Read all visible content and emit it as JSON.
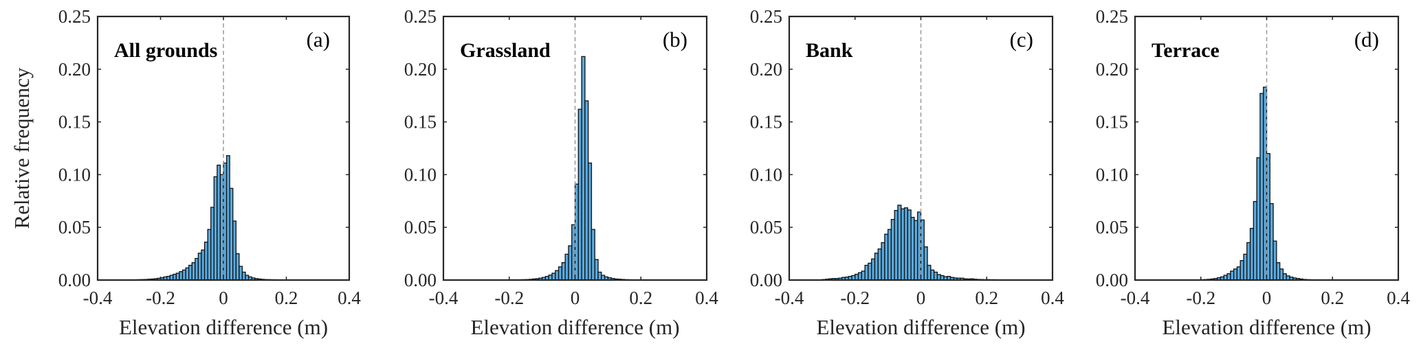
{
  "chart_data": [
    {
      "type": "bar",
      "panel_letter": "(a)",
      "title": "All grounds",
      "xlabel": "Elevation difference (m)",
      "ylabel": "Relative frequency",
      "xlim": [
        -0.4,
        0.4
      ],
      "ylim": [
        0,
        0.25
      ],
      "xticks": [
        "-0.4",
        "-0.2",
        "0",
        "0.2",
        "0.4"
      ],
      "yticks": [
        "0.00",
        "0.05",
        "0.10",
        "0.15",
        "0.20",
        "0.25"
      ],
      "bin_width": 0.01,
      "bin_start": -0.3,
      "values": [
        0.0002,
        0.0002,
        0.0003,
        0.0004,
        0.0005,
        0.0006,
        0.0008,
        0.001,
        0.0013,
        0.0017,
        0.0022,
        0.003,
        0.0035,
        0.0045,
        0.0055,
        0.0065,
        0.008,
        0.0095,
        0.0115,
        0.014,
        0.0165,
        0.0205,
        0.0255,
        0.0285,
        0.036,
        0.048,
        0.069,
        0.098,
        0.109,
        0.1,
        0.111,
        0.118,
        0.087,
        0.056,
        0.025,
        0.013,
        0.0075,
        0.0045,
        0.003,
        0.002,
        0.0014,
        0.001,
        0.0007,
        0.0005,
        0.0004,
        0.0003,
        0.0002,
        0.0002,
        0.0001,
        0.0001,
        0.0001,
        0.0001,
        0.0001,
        0.0001,
        0.0001,
        0.0001,
        0.0001,
        0.0001,
        0.0001,
        0.0001
      ],
      "reference_line_x": 0
    },
    {
      "type": "bar",
      "panel_letter": "(b)",
      "title": "Grassland",
      "xlabel": "Elevation difference (m)",
      "ylabel": "",
      "xlim": [
        -0.4,
        0.4
      ],
      "ylim": [
        0,
        0.25
      ],
      "xticks": [
        "-0.4",
        "-0.2",
        "0",
        "0.2",
        "0.4"
      ],
      "yticks": [
        "0.00",
        "0.05",
        "0.10",
        "0.15",
        "0.20",
        "0.25"
      ],
      "bin_width": 0.01,
      "bin_start": -0.2,
      "values": [
        0.0001,
        0.0002,
        0.0002,
        0.0003,
        0.0004,
        0.0005,
        0.0007,
        0.001,
        0.0013,
        0.0018,
        0.0025,
        0.0035,
        0.0047,
        0.0065,
        0.009,
        0.0125,
        0.0165,
        0.0245,
        0.0325,
        0.0525,
        0.091,
        0.162,
        0.212,
        0.17,
        0.111,
        0.048,
        0.0195,
        0.0075,
        0.0045,
        0.003,
        0.0022,
        0.0015,
        0.001,
        0.0008,
        0.0006,
        0.0004,
        0.0003,
        0.0002,
        0.0002,
        0.0001
      ],
      "reference_line_x": 0
    },
    {
      "type": "bar",
      "panel_letter": "(c)",
      "title": "Bank",
      "xlabel": "Elevation difference (m)",
      "ylabel": "",
      "xlim": [
        -0.4,
        0.4
      ],
      "ylim": [
        0,
        0.25
      ],
      "xticks": [
        "-0.4",
        "-0.2",
        "0",
        "0.2",
        "0.4"
      ],
      "yticks": [
        "0.00",
        "0.05",
        "0.10",
        "0.15",
        "0.20",
        "0.25"
      ],
      "bin_width": 0.01,
      "bin_start": -0.3,
      "values": [
        0.0005,
        0.0008,
        0.0012,
        0.0015,
        0.0015,
        0.0018,
        0.0025,
        0.0028,
        0.0035,
        0.0043,
        0.0055,
        0.007,
        0.0085,
        0.014,
        0.016,
        0.02,
        0.0255,
        0.0295,
        0.0355,
        0.0435,
        0.048,
        0.0575,
        0.066,
        0.071,
        0.0675,
        0.0685,
        0.0665,
        0.0595,
        0.0565,
        0.0645,
        0.057,
        0.0315,
        0.014,
        0.0095,
        0.0075,
        0.0052,
        0.0042,
        0.0032,
        0.0035,
        0.0025,
        0.002,
        0.0018,
        0.0018,
        0.0012,
        0.001,
        0.0012,
        0.0008,
        0.0006,
        0.0005,
        0.0004,
        0.0004,
        0.0003,
        0.0003,
        0.0002,
        0.0002,
        0.0002,
        0.0001,
        0.0001,
        0.0001,
        0.0001
      ],
      "reference_line_x": 0
    },
    {
      "type": "bar",
      "panel_letter": "(d)",
      "title": "Terrace",
      "xlabel": "Elevation difference (m)",
      "ylabel": "",
      "xlim": [
        -0.4,
        0.4
      ],
      "ylim": [
        0,
        0.25
      ],
      "xticks": [
        "-0.4",
        "-0.2",
        "0",
        "0.2",
        "0.4"
      ],
      "yticks": [
        "0.00",
        "0.05",
        "0.10",
        "0.15",
        "0.20",
        "0.25"
      ],
      "bin_width": 0.01,
      "bin_start": -0.2,
      "values": [
        0.0003,
        0.0005,
        0.0007,
        0.001,
        0.0015,
        0.0022,
        0.003,
        0.0045,
        0.006,
        0.0085,
        0.0105,
        0.0125,
        0.0185,
        0.0245,
        0.0355,
        0.049,
        0.0745,
        0.116,
        0.177,
        0.183,
        0.12,
        0.0725,
        0.037,
        0.0165,
        0.0105,
        0.006,
        0.004,
        0.0028,
        0.002,
        0.0015,
        0.001,
        0.0006,
        0.0004,
        0.0003,
        0.0002,
        0.0001
      ],
      "reference_line_x": 0
    }
  ],
  "colors": {
    "bar_fill": "#5aa9dd",
    "bar_edge": "#111111",
    "axis": "#262626",
    "reference_line": "#9a9a9a"
  }
}
